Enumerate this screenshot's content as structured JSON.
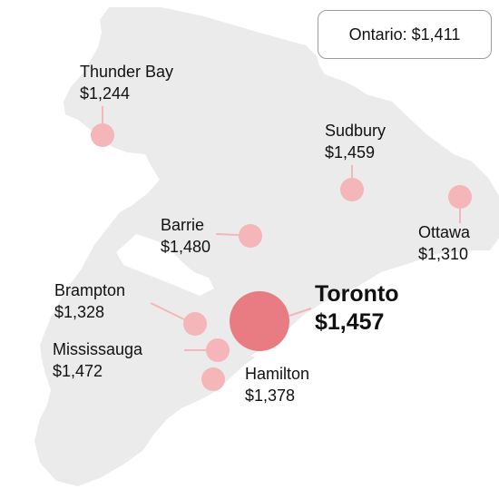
{
  "summary": {
    "region": "Ontario",
    "value": "$1,411"
  },
  "colors": {
    "land": "#ebebeb",
    "bubble": "#f4b6b8",
    "bubble_main": "#e97c82",
    "leader": "#f4b6b8",
    "text": "#111111"
  },
  "cities": [
    {
      "id": "thunder-bay",
      "name": "Thunder Bay",
      "value": "$1,244",
      "rent": 1244
    },
    {
      "id": "sudbury",
      "name": "Sudbury",
      "value": "$1,459",
      "rent": 1459
    },
    {
      "id": "ottawa",
      "name": "Ottawa",
      "value": "$1,310",
      "rent": 1310
    },
    {
      "id": "barrie",
      "name": "Barrie",
      "value": "$1,480",
      "rent": 1480
    },
    {
      "id": "brampton",
      "name": "Brampton",
      "value": "$1,328",
      "rent": 1328
    },
    {
      "id": "toronto",
      "name": "Toronto",
      "value": "$1,457",
      "rent": 1457,
      "highlight": true
    },
    {
      "id": "mississauga",
      "name": "Mississauga",
      "value": "$1,472",
      "rent": 1472
    },
    {
      "id": "hamilton",
      "name": "Hamilton",
      "value": "$1,378",
      "rent": 1378
    }
  ]
}
